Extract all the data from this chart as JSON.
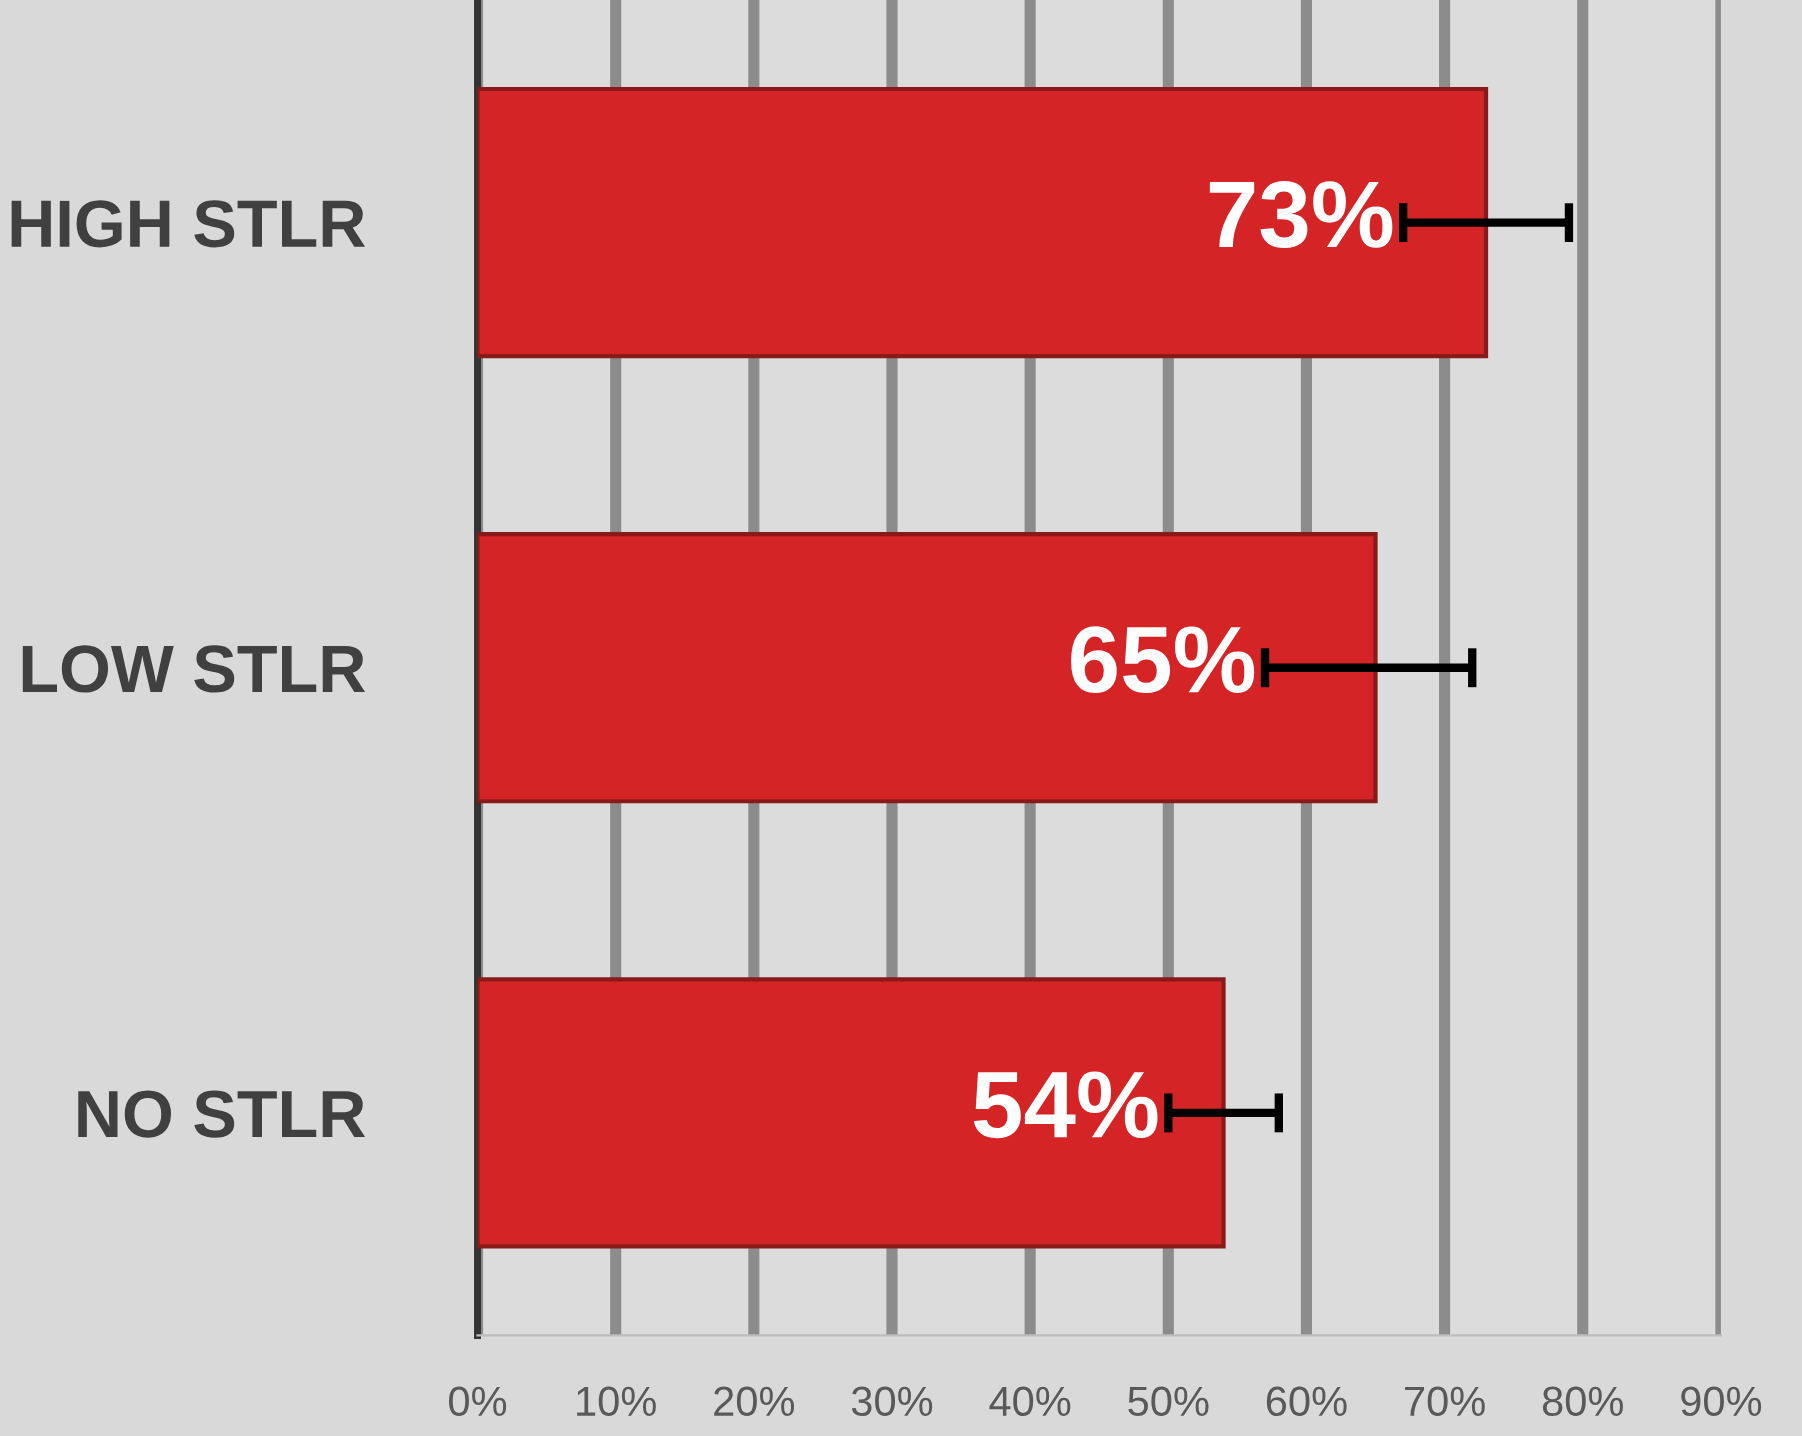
{
  "chart_data": {
    "type": "bar",
    "orientation": "horizontal",
    "categories": [
      "HIGH STLR",
      "LOW STLR",
      "NO STLR"
    ],
    "values": [
      73,
      65,
      54
    ],
    "errors": [
      [
        67,
        79
      ],
      [
        57,
        72
      ],
      [
        50,
        58
      ]
    ],
    "value_labels": [
      "73%",
      "65%",
      "54%"
    ],
    "color": "#d42426",
    "xlim": [
      0,
      90
    ],
    "xticks": [
      {
        "value": 0,
        "label": "0%"
      },
      {
        "value": 10,
        "label": "10%"
      },
      {
        "value": 20,
        "label": "20%"
      },
      {
        "value": 30,
        "label": "30%"
      },
      {
        "value": 40,
        "label": "40%"
      },
      {
        "value": 50,
        "label": "50%"
      },
      {
        "value": 60,
        "label": "60%"
      },
      {
        "value": 70,
        "label": "70%"
      },
      {
        "value": 80,
        "label": "80%"
      },
      {
        "value": 90,
        "label": "90%"
      }
    ],
    "grid": "x",
    "legend": false
  }
}
